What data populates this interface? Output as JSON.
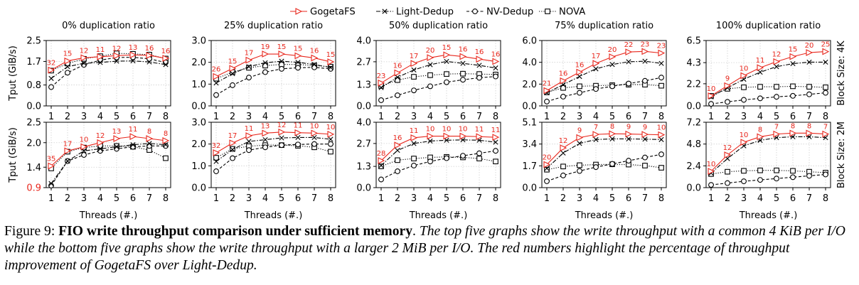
{
  "legend": [
    {
      "name": "GogetaFS",
      "marker": "triangle-right",
      "dash": "solid",
      "color": "#e8261c"
    },
    {
      "name": "Light-Dedup",
      "marker": "x",
      "dash": "dashdot",
      "color": "#000000"
    },
    {
      "name": "NV-Dedup",
      "marker": "circle",
      "dash": "dashed",
      "color": "#000000"
    },
    {
      "name": "NOVA",
      "marker": "square",
      "dash": "dotted",
      "color": "#000000"
    }
  ],
  "highlight_color": "#e8261c",
  "row_labels": [
    "Block Size: 4K",
    "Block Size: 2M"
  ],
  "caption": {
    "lead": "Figure 9: ",
    "bold": "FIO write throughput comparison under sufficient memory",
    "period": ". ",
    "rest": "The top five graphs show the write throughput with a common 4 KiB per I/O while the bottom five graphs show the write throughput with a larger 2 MiB per I/O. The red numbers highlight the percentage of throughput improvement of GogetaFS over Light-Dedup."
  },
  "chart_data": [
    {
      "type": "line",
      "row": 0,
      "col": 0,
      "title": "0% duplication ratio",
      "ylabel": "Tput (GiB/s)",
      "xlabel": "",
      "x": [
        1,
        2,
        3,
        4,
        5,
        6,
        7,
        8
      ],
      "ylim": [
        0,
        2.5
      ],
      "yticks": [
        "0.0",
        "0.8",
        "1.7",
        "2.5"
      ],
      "series": [
        {
          "name": "GogetaFS",
          "values": [
            1.37,
            1.72,
            1.84,
            1.88,
            1.92,
            1.95,
            1.93,
            1.82
          ]
        },
        {
          "name": "Light-Dedup",
          "values": [
            1.05,
            1.5,
            1.63,
            1.66,
            1.71,
            1.72,
            1.68,
            1.58
          ]
        },
        {
          "name": "NV-Dedup",
          "values": [
            0.72,
            1.27,
            1.57,
            1.75,
            1.85,
            1.86,
            1.8,
            1.66
          ]
        },
        {
          "name": "NOVA",
          "values": [
            1.35,
            1.62,
            1.8,
            1.9,
            2.01,
            1.99,
            1.96,
            1.81
          ]
        }
      ],
      "annotations": [
        "32",
        "15",
        "12",
        "11",
        "12",
        "13",
        "16",
        "16"
      ]
    },
    {
      "type": "line",
      "row": 0,
      "col": 1,
      "title": "25% duplication ratio",
      "ylabel": "",
      "xlabel": "",
      "x": [
        1,
        2,
        3,
        4,
        5,
        6,
        7,
        8
      ],
      "ylim": [
        0,
        3.0
      ],
      "yticks": [
        "0.0",
        "1.0",
        "2.0",
        "3.0"
      ],
      "series": [
        {
          "name": "GogetaFS",
          "values": [
            1.35,
            1.72,
            2.1,
            2.38,
            2.38,
            2.3,
            2.2,
            2.02
          ]
        },
        {
          "name": "Light-Dedup",
          "values": [
            1.05,
            1.48,
            1.8,
            1.98,
            2.05,
            2.0,
            1.9,
            1.76
          ]
        },
        {
          "name": "NV-Dedup",
          "values": [
            0.5,
            0.95,
            1.3,
            1.55,
            1.7,
            1.75,
            1.77,
            1.7
          ]
        },
        {
          "name": "NOVA",
          "values": [
            1.25,
            1.55,
            1.75,
            1.85,
            1.9,
            1.9,
            1.85,
            1.8
          ]
        }
      ],
      "annotations": [
        "26",
        "15",
        "17",
        "19",
        "15",
        "15",
        "16",
        "15"
      ]
    },
    {
      "type": "line",
      "row": 0,
      "col": 2,
      "title": "50% duplication ratio",
      "ylabel": "",
      "xlabel": "",
      "x": [
        1,
        2,
        3,
        4,
        5,
        6,
        7,
        8
      ],
      "ylim": [
        0,
        4.0
      ],
      "yticks": [
        "0.0",
        "1.3",
        "2.7",
        "4.0"
      ],
      "series": [
        {
          "name": "GogetaFS",
          "values": [
            1.4,
            2.02,
            2.6,
            2.95,
            3.12,
            3.02,
            2.86,
            2.72
          ]
        },
        {
          "name": "Light-Dedup",
          "values": [
            1.12,
            1.75,
            2.2,
            2.52,
            2.72,
            2.6,
            2.48,
            2.32
          ]
        },
        {
          "name": "NV-Dedup",
          "values": [
            0.35,
            0.65,
            0.95,
            1.2,
            1.45,
            1.6,
            1.72,
            1.8
          ]
        },
        {
          "name": "NOVA",
          "values": [
            1.22,
            1.58,
            1.78,
            1.88,
            1.95,
            1.97,
            1.95,
            1.92
          ]
        }
      ],
      "annotations": [
        "23",
        "16",
        "17",
        "20",
        "15",
        "16",
        "16",
        "16"
      ]
    },
    {
      "type": "line",
      "row": 0,
      "col": 3,
      "title": "75% duplication ratio",
      "ylabel": "",
      "xlabel": "",
      "x": [
        1,
        2,
        3,
        4,
        5,
        6,
        7,
        8
      ],
      "ylim": [
        0,
        6.0
      ],
      "yticks": [
        "0.0",
        "2.0",
        "4.0",
        "6.0"
      ],
      "series": [
        {
          "name": "GogetaFS",
          "values": [
            1.4,
            2.3,
            3.1,
            3.9,
            4.5,
            4.95,
            5.0,
            4.85
          ]
        },
        {
          "name": "Light-Dedup",
          "values": [
            1.2,
            1.95,
            2.7,
            3.4,
            3.8,
            4.05,
            4.1,
            3.9
          ]
        },
        {
          "name": "NV-Dedup",
          "values": [
            0.4,
            0.85,
            1.2,
            1.55,
            1.8,
            2.05,
            2.3,
            2.6
          ]
        },
        {
          "name": "NOVA",
          "values": [
            1.25,
            1.65,
            1.8,
            1.85,
            1.9,
            1.95,
            1.95,
            1.85
          ]
        }
      ],
      "annotations": [
        "21",
        "16",
        "16",
        "17",
        "20",
        "22",
        "23",
        "23"
      ]
    },
    {
      "type": "line",
      "row": 0,
      "col": 4,
      "title": "100% duplication ratio",
      "ylabel": "",
      "xlabel": "",
      "x": [
        1,
        2,
        3,
        4,
        5,
        6,
        7,
        8
      ],
      "ylim": [
        0,
        6.5
      ],
      "yticks": [
        "0.0",
        "2.2",
        "4.3",
        "6.5"
      ],
      "series": [
        {
          "name": "GogetaFS",
          "values": [
            1.0,
            2.0,
            3.0,
            3.8,
            4.4,
            4.9,
            5.3,
            5.4
          ]
        },
        {
          "name": "Light-Dedup",
          "values": [
            0.9,
            1.8,
            2.65,
            3.35,
            3.9,
            4.2,
            4.35,
            4.35
          ]
        },
        {
          "name": "NV-Dedup",
          "values": [
            0.2,
            0.4,
            0.6,
            0.75,
            0.9,
            1.0,
            1.15,
            1.3
          ]
        },
        {
          "name": "NOVA",
          "values": [
            1.0,
            1.7,
            1.85,
            1.9,
            1.9,
            1.95,
            1.9,
            1.85
          ]
        }
      ],
      "annotations": [
        "10",
        "9",
        "10",
        "11",
        "12",
        "15",
        "20",
        "25"
      ]
    },
    {
      "type": "line",
      "row": 1,
      "col": 0,
      "title": "",
      "ylabel": "Tput (GiB/s)",
      "xlabel": "Threads (#.)",
      "x": [
        1,
        2,
        3,
        4,
        5,
        6,
        7,
        8
      ],
      "ylim": [
        0.9,
        2.5
      ],
      "yticks": [
        "0.9",
        "1.4",
        "2.0",
        "2.5"
      ],
      "ytick_red": "0.9",
      "series": [
        {
          "name": "GogetaFS",
          "values": [
            1.43,
            1.8,
            1.9,
            2.0,
            2.1,
            2.15,
            2.1,
            2.05
          ]
        },
        {
          "name": "Light-Dedup",
          "values": [
            1.0,
            1.55,
            1.8,
            1.85,
            1.9,
            1.95,
            1.98,
            1.95
          ]
        },
        {
          "name": "NV-Dedup",
          "values": [
            0.95,
            1.55,
            1.7,
            1.8,
            1.85,
            1.9,
            1.92,
            1.92
          ]
        },
        {
          "name": "NOVA",
          "values": [
            1.37,
            1.78,
            1.88,
            1.92,
            1.92,
            1.9,
            1.82,
            1.62
          ]
        }
      ],
      "annotations": [
        "35",
        "17",
        "10",
        "12",
        "13",
        "11",
        "8",
        "8"
      ]
    },
    {
      "type": "line",
      "row": 1,
      "col": 1,
      "title": "",
      "ylabel": "",
      "xlabel": "Threads (#.)",
      "x": [
        1,
        2,
        3,
        4,
        5,
        6,
        7,
        8
      ],
      "ylim": [
        0,
        3.0
      ],
      "yticks": [
        "0.0",
        "1.0",
        "2.0",
        "3.0"
      ],
      "series": [
        {
          "name": "GogetaFS",
          "values": [
            1.6,
            2.05,
            2.38,
            2.5,
            2.55,
            2.52,
            2.5,
            2.45
          ]
        },
        {
          "name": "Light-Dedup",
          "values": [
            1.2,
            1.75,
            2.12,
            2.2,
            2.28,
            2.3,
            2.3,
            2.22
          ]
        },
        {
          "name": "NV-Dedup",
          "values": [
            0.75,
            1.35,
            1.72,
            1.85,
            1.95,
            1.98,
            2.0,
            2.0
          ]
        },
        {
          "name": "NOVA",
          "values": [
            1.37,
            1.78,
            1.9,
            1.95,
            1.95,
            1.92,
            1.85,
            1.65
          ]
        }
      ],
      "annotations": [
        "32",
        "17",
        "11",
        "13",
        "12",
        "11",
        "10",
        "10"
      ]
    },
    {
      "type": "line",
      "row": 1,
      "col": 2,
      "title": "",
      "ylabel": "",
      "xlabel": "Threads (#.)",
      "x": [
        1,
        2,
        3,
        4,
        5,
        6,
        7,
        8
      ],
      "ylim": [
        0,
        4.0
      ],
      "yticks": [
        "0.0",
        "1.3",
        "2.7",
        "4.0"
      ],
      "series": [
        {
          "name": "GogetaFS",
          "values": [
            1.65,
            2.6,
            3.05,
            3.15,
            3.15,
            3.15,
            3.12,
            3.08
          ]
        },
        {
          "name": "Light-Dedup",
          "values": [
            1.35,
            2.28,
            2.7,
            2.85,
            2.9,
            2.92,
            2.9,
            2.78
          ]
        },
        {
          "name": "NV-Dedup",
          "values": [
            0.5,
            1.0,
            1.35,
            1.6,
            1.8,
            1.95,
            2.1,
            2.25
          ]
        },
        {
          "name": "NOVA",
          "values": [
            1.3,
            1.68,
            1.78,
            1.85,
            1.88,
            1.85,
            1.78,
            1.6
          ]
        }
      ],
      "annotations": [
        "28",
        "16",
        "11",
        "10",
        "10",
        "10",
        "11",
        "11"
      ]
    },
    {
      "type": "line",
      "row": 1,
      "col": 3,
      "title": "",
      "ylabel": "",
      "xlabel": "Threads (#.)",
      "x": [
        1,
        2,
        3,
        4,
        5,
        6,
        7,
        8
      ],
      "ylim": [
        0,
        5.1
      ],
      "yticks": [
        "0.0",
        "1.7",
        "3.4",
        "5.1"
      ],
      "series": [
        {
          "name": "GogetaFS",
          "values": [
            1.8,
            3.1,
            3.9,
            4.15,
            4.2,
            4.18,
            4.15,
            4.12
          ]
        },
        {
          "name": "Light-Dedup",
          "values": [
            1.5,
            2.7,
            3.45,
            3.75,
            3.8,
            3.8,
            3.78,
            3.75
          ]
        },
        {
          "name": "NV-Dedup",
          "values": [
            0.5,
            0.95,
            1.3,
            1.6,
            1.85,
            2.1,
            2.35,
            2.6
          ]
        },
        {
          "name": "NOVA",
          "values": [
            1.4,
            1.65,
            1.75,
            1.8,
            1.82,
            1.8,
            1.72,
            1.55
          ]
        }
      ],
      "annotations": [
        "20",
        "12",
        "9",
        "7",
        "8",
        "9",
        "9",
        "10"
      ]
    },
    {
      "type": "line",
      "row": 1,
      "col": 4,
      "title": "",
      "ylabel": "",
      "xlabel": "Threads (#.)",
      "x": [
        1,
        2,
        3,
        4,
        5,
        6,
        7,
        8
      ],
      "ylim": [
        0,
        7.2
      ],
      "yticks": [
        "0.0",
        "2.4",
        "4.8",
        "7.2"
      ],
      "series": [
        {
          "name": "GogetaFS",
          "values": [
            1.8,
            3.6,
            5.0,
            5.6,
            5.9,
            6.0,
            6.0,
            5.9
          ]
        },
        {
          "name": "Light-Dedup",
          "values": [
            1.6,
            3.2,
            4.6,
            5.2,
            5.5,
            5.6,
            5.6,
            5.5
          ]
        },
        {
          "name": "NV-Dedup",
          "values": [
            0.3,
            0.5,
            0.7,
            0.85,
            1.0,
            1.15,
            1.3,
            1.45
          ]
        },
        {
          "name": "NOVA",
          "values": [
            1.5,
            1.75,
            1.85,
            1.9,
            1.9,
            1.85,
            1.75,
            1.65
          ]
        }
      ],
      "annotations": [
        "10",
        "12",
        "10",
        "8",
        "7",
        "8",
        "8",
        "7"
      ]
    }
  ]
}
